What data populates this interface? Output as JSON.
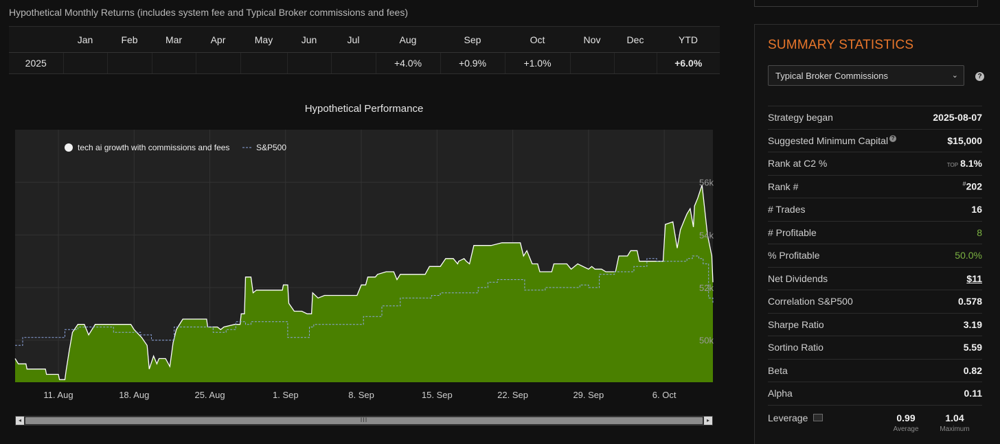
{
  "monthly_returns": {
    "title": "Hypothetical Monthly Returns (includes system fee and Typical Broker commissions and fees)",
    "headers": [
      "",
      "Jan",
      "Feb",
      "Mar",
      "Apr",
      "May",
      "Jun",
      "Jul",
      "Aug",
      "Sep",
      "Oct",
      "Nov",
      "Dec",
      "YTD"
    ],
    "row": {
      "year": "2025",
      "values": [
        "",
        "",
        "",
        "",
        "",
        "",
        "",
        "+4.0%",
        "+0.9%",
        "+1.0%",
        "",
        "",
        "+6.0%"
      ]
    }
  },
  "performance": {
    "title": "Hypothetical Performance",
    "legend": {
      "strategy": "tech ai growth with commissions and fees",
      "benchmark": "S&P500"
    },
    "scroll_grip": "III"
  },
  "chart_data": {
    "type": "area",
    "title": "Hypothetical Performance",
    "x_ticks": [
      "11. Aug",
      "18. Aug",
      "25. Aug",
      "1. Sep",
      "8. Sep",
      "15. Sep",
      "22. Sep",
      "29. Sep",
      "6. Oct"
    ],
    "y_ticks": [
      "50k",
      "52k",
      "54k",
      "56k"
    ],
    "ylim": [
      48400,
      58000
    ],
    "xlim": [
      0,
      64.5
    ],
    "colors": {
      "strategy_fill": "#4a8000",
      "strategy_line": "#ffffff",
      "benchmark_line": "#8da6e0"
    },
    "series": [
      {
        "name": "tech ai growth with commissions and fees",
        "points": [
          [
            0,
            49.3
          ],
          [
            0.3,
            49.1
          ],
          [
            1.0,
            49.1
          ],
          [
            1.1,
            48.9
          ],
          [
            2.8,
            48.9
          ],
          [
            2.9,
            48.7
          ],
          [
            4.0,
            48.7
          ],
          [
            4.1,
            48.5
          ],
          [
            4.6,
            48.5
          ],
          [
            4.7,
            48.8
          ],
          [
            5.0,
            49.6
          ],
          [
            5.3,
            50.3
          ],
          [
            5.8,
            50.6
          ],
          [
            6.4,
            50.6
          ],
          [
            6.8,
            50.2
          ],
          [
            7.4,
            50.6
          ],
          [
            8.6,
            50.6
          ],
          [
            10.7,
            50.6
          ],
          [
            11.0,
            50.4
          ],
          [
            11.7,
            50.1
          ],
          [
            12.2,
            49.8
          ],
          [
            12.4,
            48.9
          ],
          [
            12.8,
            49.4
          ],
          [
            13.1,
            49.1
          ],
          [
            13.3,
            49.3
          ],
          [
            13.9,
            49.3
          ],
          [
            14.3,
            49.0
          ],
          [
            14.6,
            49.9
          ],
          [
            14.9,
            50.4
          ],
          [
            15.5,
            50.8
          ],
          [
            16.7,
            50.8
          ],
          [
            17.7,
            50.8
          ],
          [
            17.8,
            50.5
          ],
          [
            18.7,
            50.5
          ],
          [
            19.0,
            50.4
          ],
          [
            19.3,
            50.5
          ],
          [
            20.3,
            50.6
          ],
          [
            20.8,
            50.6
          ],
          [
            20.9,
            51.0
          ],
          [
            21.2,
            51.0
          ],
          [
            21.3,
            52.4
          ],
          [
            21.8,
            52.4
          ],
          [
            22.0,
            51.8
          ],
          [
            22.3,
            51.9
          ],
          [
            24.0,
            51.9
          ],
          [
            24.7,
            51.9
          ],
          [
            24.8,
            52.1
          ],
          [
            25.2,
            52.1
          ],
          [
            25.3,
            51.4
          ],
          [
            25.8,
            51.1
          ],
          [
            26.5,
            51.1
          ],
          [
            27.0,
            51.0
          ],
          [
            27.4,
            51.0
          ],
          [
            27.5,
            51.8
          ],
          [
            28.0,
            51.6
          ],
          [
            28.6,
            51.7
          ],
          [
            30.0,
            51.7
          ],
          [
            31.6,
            51.7
          ],
          [
            32.0,
            52.1
          ],
          [
            32.4,
            52.1
          ],
          [
            32.6,
            52.4
          ],
          [
            33.3,
            52.4
          ],
          [
            33.5,
            52.5
          ],
          [
            34.3,
            52.6
          ],
          [
            35.0,
            52.6
          ],
          [
            35.3,
            52.3
          ],
          [
            35.6,
            52.5
          ],
          [
            37.5,
            52.5
          ],
          [
            37.9,
            52.5
          ],
          [
            38.3,
            52.8
          ],
          [
            39.3,
            52.8
          ],
          [
            39.8,
            53.1
          ],
          [
            40.5,
            53.1
          ],
          [
            40.9,
            52.9
          ],
          [
            41.0,
            53.0
          ],
          [
            41.5,
            53.1
          ],
          [
            41.7,
            53.0
          ],
          [
            42.0,
            52.9
          ],
          [
            42.4,
            53.6
          ],
          [
            44.0,
            53.6
          ],
          [
            45.0,
            53.7
          ],
          [
            46.3,
            53.7
          ],
          [
            46.7,
            53.7
          ],
          [
            47.0,
            53.2
          ],
          [
            47.3,
            53.4
          ],
          [
            47.8,
            52.9
          ],
          [
            48.3,
            52.9
          ],
          [
            48.5,
            52.6
          ],
          [
            49.2,
            52.6
          ],
          [
            49.6,
            52.6
          ],
          [
            49.8,
            52.9
          ],
          [
            51.0,
            52.9
          ],
          [
            51.4,
            52.7
          ],
          [
            52.0,
            52.9
          ],
          [
            53.0,
            52.7
          ],
          [
            53.3,
            52.8
          ],
          [
            53.6,
            52.7
          ],
          [
            54.2,
            52.7
          ],
          [
            54.6,
            52.6
          ],
          [
            55.1,
            52.6
          ],
          [
            55.5,
            52.6
          ],
          [
            55.8,
            53.2
          ],
          [
            56.6,
            53.2
          ],
          [
            56.9,
            53.4
          ],
          [
            57.5,
            53.4
          ],
          [
            57.7,
            53.0
          ],
          [
            59.0,
            53.0
          ],
          [
            59.7,
            53.0
          ],
          [
            59.9,
            53.0
          ],
          [
            60.1,
            54.4
          ],
          [
            60.8,
            54.5
          ],
          [
            61.2,
            53.5
          ],
          [
            61.5,
            54.2
          ],
          [
            61.9,
            54.6
          ],
          [
            62.1,
            54.8
          ],
          [
            62.4,
            55.0
          ],
          [
            62.7,
            54.3
          ],
          [
            62.8,
            55.1
          ],
          [
            63.1,
            55.4
          ],
          [
            63.5,
            55.9
          ],
          [
            64.0,
            54.0
          ],
          [
            64.4,
            53.2
          ],
          [
            64.5,
            52.2
          ]
        ]
      },
      {
        "name": "S&P500",
        "points": [
          [
            0,
            49.8
          ],
          [
            0.7,
            50.1
          ],
          [
            1.7,
            50.1
          ],
          [
            2.6,
            50.1
          ],
          [
            3.5,
            50.1
          ],
          [
            4.6,
            50.4
          ],
          [
            5.7,
            50.4
          ],
          [
            5.8,
            50.5
          ],
          [
            7.5,
            50.5
          ],
          [
            8.2,
            50.5
          ],
          [
            9.1,
            50.3
          ],
          [
            10.8,
            50.3
          ],
          [
            11.6,
            50.2
          ],
          [
            12.6,
            50.0
          ],
          [
            13.1,
            50.0
          ],
          [
            14.7,
            50.5
          ],
          [
            15.2,
            50.5
          ],
          [
            17.5,
            50.5
          ],
          [
            18.3,
            50.3
          ],
          [
            18.8,
            50.3
          ],
          [
            19.5,
            50.4
          ],
          [
            20.4,
            50.7
          ],
          [
            21.3,
            50.6
          ],
          [
            21.8,
            50.7
          ],
          [
            23.0,
            50.7
          ],
          [
            24.3,
            50.7
          ],
          [
            24.9,
            50.7
          ],
          [
            25.2,
            50.1
          ],
          [
            26.6,
            50.1
          ],
          [
            27.2,
            50.5
          ],
          [
            27.6,
            50.6
          ],
          [
            28.4,
            50.6
          ],
          [
            30.0,
            50.6
          ],
          [
            31.3,
            50.6
          ],
          [
            32.0,
            50.6
          ],
          [
            32.2,
            50.9
          ],
          [
            33.3,
            50.9
          ],
          [
            33.9,
            51.3
          ],
          [
            35.1,
            51.3
          ],
          [
            35.6,
            51.6
          ],
          [
            37.7,
            51.6
          ],
          [
            38.5,
            51.7
          ],
          [
            39.3,
            51.8
          ],
          [
            40.2,
            51.8
          ],
          [
            41.5,
            51.8
          ],
          [
            42.8,
            52.0
          ],
          [
            43.7,
            52.2
          ],
          [
            44.6,
            52.3
          ],
          [
            46.5,
            52.3
          ],
          [
            47.1,
            51.9
          ],
          [
            48.4,
            51.9
          ],
          [
            49.0,
            52.0
          ],
          [
            50.2,
            52.0
          ],
          [
            51.1,
            52.0
          ],
          [
            51.8,
            52.0
          ],
          [
            52.2,
            52.1
          ],
          [
            53.0,
            52.0
          ],
          [
            54.0,
            52.5
          ],
          [
            55.4,
            52.6
          ],
          [
            56.6,
            52.6
          ],
          [
            57.2,
            52.8
          ],
          [
            58.4,
            53.1
          ],
          [
            59.3,
            53.0
          ],
          [
            59.9,
            53.0
          ],
          [
            60.6,
            53.0
          ],
          [
            61.2,
            53.0
          ],
          [
            61.6,
            53.0
          ],
          [
            62.1,
            53.1
          ],
          [
            62.6,
            53.2
          ],
          [
            63.2,
            53.1
          ],
          [
            63.6,
            52.9
          ],
          [
            64.1,
            51.6
          ],
          [
            64.5,
            51.4
          ]
        ]
      }
    ]
  },
  "summary": {
    "title": "SUMMARY STATISTICS",
    "commission_select": "Typical Broker Commissions",
    "help_icon": "?",
    "stats": [
      {
        "label": "Strategy began",
        "value": "2025-08-07",
        "style": "bold"
      },
      {
        "label": "Suggested Minimum Capital",
        "value": "$15,000",
        "style": "bold",
        "help": "?"
      },
      {
        "label": "Rank at C2 %",
        "prefix": "TOP",
        "value": "8.1%",
        "style": "bold"
      },
      {
        "label": "Rank #",
        "sup": "#",
        "value": "202",
        "style": "bold"
      },
      {
        "label": "# Trades",
        "value": "16",
        "style": "bold"
      },
      {
        "label": "# Profitable",
        "value": "8",
        "style": "green"
      },
      {
        "label": "% Profitable",
        "value": "50.0%",
        "style": "green"
      },
      {
        "label": "Net Dividends",
        "value": "$11",
        "style": "underline"
      },
      {
        "label": "Correlation S&P500",
        "value": "0.578",
        "style": "bold"
      },
      {
        "label": "Sharpe Ratio",
        "value": "3.19",
        "style": "bold"
      },
      {
        "label": "Sortino Ratio",
        "value": "5.59",
        "style": "bold"
      },
      {
        "label": "Beta",
        "value": "0.82",
        "style": "bold"
      },
      {
        "label": "Alpha",
        "value": "0.11",
        "style": "bold"
      }
    ],
    "leverage": {
      "label": "Leverage",
      "average_value": "0.99",
      "average_label": "Average",
      "maximum_value": "1.04",
      "maximum_label": "Maximum"
    }
  }
}
